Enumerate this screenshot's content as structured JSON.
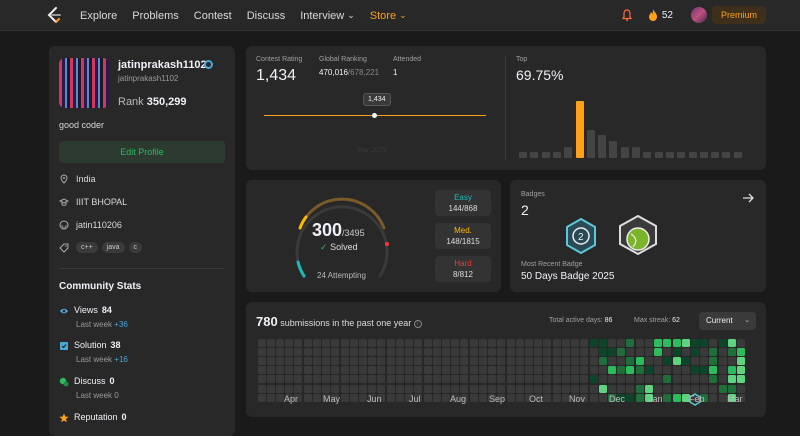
{
  "nav": {
    "items": [
      "Explore",
      "Problems",
      "Contest",
      "Discuss",
      "Interview"
    ],
    "store": "Store",
    "streak": "52",
    "premium": "Premium"
  },
  "profile": {
    "username": "jatinprakash1102",
    "login": "jatinprakash1102",
    "rank_label": "Rank",
    "rank": "350,299",
    "bio": "good coder",
    "edit_label": "Edit Profile",
    "location": "India",
    "school": "IIIT BHOPAL",
    "github": "jatin110206",
    "skills": [
      "c++",
      "java",
      "c"
    ]
  },
  "community": {
    "title": "Community Stats",
    "items": [
      {
        "label": "Views",
        "value": "84",
        "last_week": "Last week",
        "delta": "+36"
      },
      {
        "label": "Solution",
        "value": "38",
        "last_week": "Last week",
        "delta": "+16"
      },
      {
        "label": "Discuss",
        "value": "0",
        "last_week": "Last week",
        "delta": "0"
      },
      {
        "label": "Reputation",
        "value": "0",
        "last_week": "",
        "delta": ""
      }
    ]
  },
  "contest": {
    "rating_label": "Contest Rating",
    "rating": "1,434",
    "global_label": "Global Ranking",
    "global_rank": "470,016",
    "global_total": "/678,221",
    "attended_label": "Attended",
    "attended": "1",
    "tooltip": "1,434",
    "faded_date": "Mar 2025",
    "top_label": "Top",
    "top_value": "69.75%",
    "histogram": [
      1,
      1,
      1,
      1,
      2,
      10,
      5,
      4,
      3,
      2,
      2,
      1,
      1,
      1,
      1,
      1,
      1,
      1,
      1,
      1
    ],
    "highlight_index": 5
  },
  "solved": {
    "count": "300",
    "total": "/3495",
    "label": "Solved",
    "attempting": "24 Attempting",
    "easy_label": "Easy",
    "easy": "144/868",
    "med_label": "Med.",
    "med": "148/1815",
    "hard_label": "Hard",
    "hard": "8/812",
    "colors": {
      "easy": "#1cbaba",
      "med": "#ffb700",
      "hard": "#f63737"
    }
  },
  "badges": {
    "title": "Badges",
    "count": "2",
    "recent_label": "Most Recent Badge",
    "recent": "50 Days Badge 2025"
  },
  "submissions": {
    "count": "780",
    "label": "submissions in the past one year",
    "active_label": "Total active days:",
    "active": "86",
    "streak_label": "Max streak:",
    "streak": "62",
    "select": "Current",
    "months": [
      "Apr",
      "May",
      "Jun",
      "Jul",
      "Aug",
      "Sep",
      "Oct",
      "Nov",
      "Dec",
      "Jan",
      "Feb",
      "Mar"
    ]
  }
}
